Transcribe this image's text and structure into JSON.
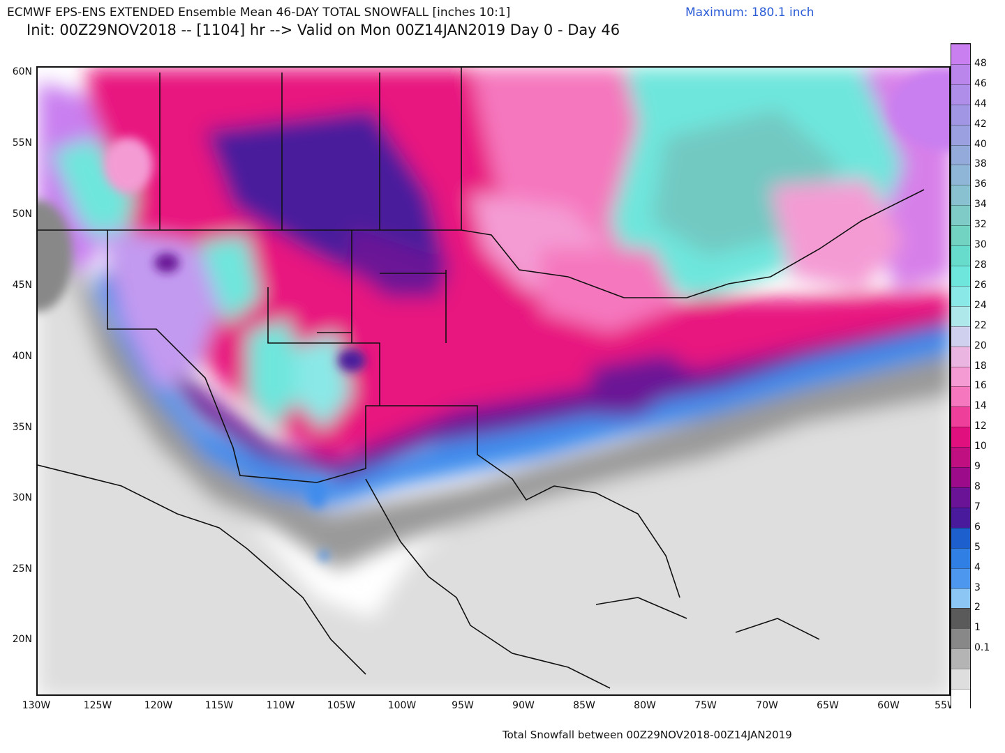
{
  "header": {
    "title": "ECMWF EPS-ENS EXTENDED Ensemble Mean 46-DAY TOTAL SNOWFALL [inches 10:1]",
    "subtitle": "Init: 00Z29NOV2018 -- [1104] hr --> Valid on Mon 00Z14JAN2019  Day 0 - Day 46",
    "maximum": "Maximum: 180.1 inch"
  },
  "footer": "Total Snowfall between 00Z29NOV2018-00Z14JAN2019",
  "latitude_labels": [
    "60N",
    "55N",
    "50N",
    "45N",
    "40N",
    "35N",
    "30N",
    "25N",
    "20N"
  ],
  "longitude_labels": [
    "130W",
    "125W",
    "120W",
    "115W",
    "110W",
    "105W",
    "100W",
    "95W",
    "90W",
    "85W",
    "80W",
    "75W",
    "70W",
    "65W",
    "60W",
    "55W"
  ],
  "colorbar": {
    "labels": [
      "48",
      "46",
      "44",
      "42",
      "40",
      "38",
      "36",
      "34",
      "32",
      "30",
      "28",
      "26",
      "24",
      "22",
      "20",
      "18",
      "16",
      "14",
      "12",
      "10",
      "9",
      "8",
      "7",
      "6",
      "5",
      "4",
      "3",
      "2",
      "1",
      "0.1"
    ],
    "colors": [
      "#c97ff0",
      "#bb86ec",
      "#ae8ee8",
      "#a196e4",
      "#9aa0e0",
      "#94aadb",
      "#8fb6d6",
      "#89c1d1",
      "#7fcbc8",
      "#72d3c2",
      "#68dccc",
      "#6ee6dc",
      "#8ae8e6",
      "#aee8ea",
      "#cfd0ee",
      "#eab5e0",
      "#f49bd4",
      "#f577bd",
      "#ee3f9a",
      "#e0117f",
      "#c00f80",
      "#9c0c8a",
      "#6b1396",
      "#4a1a9c",
      "#1d5fcc",
      "#2f7fe4",
      "#4e97ee",
      "#8cc6f4",
      "#5a5a5a",
      "#888888",
      "#b4b4b4",
      "#dedede",
      "#ffffff"
    ]
  }
}
